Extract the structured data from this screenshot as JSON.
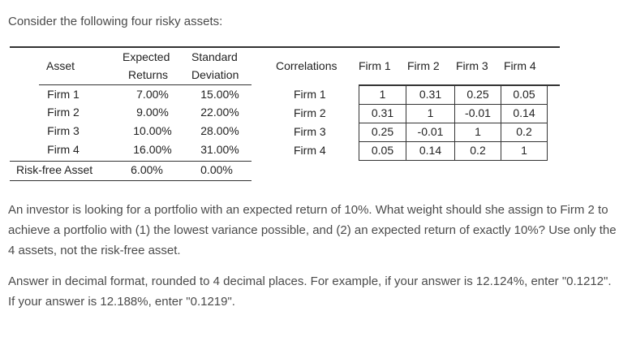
{
  "intro": "Consider the following four risky assets:",
  "asset_table": {
    "header_asset": "Asset",
    "header_expected_line1": "Expected",
    "header_expected_line2": "Returns",
    "header_std_line1": "Standard",
    "header_std_line2": "Deviation",
    "rows": [
      {
        "asset": "Firm 1",
        "expected": "7.00%",
        "std": "15.00%"
      },
      {
        "asset": "Firm 2",
        "expected": "9.00%",
        "std": "22.00%"
      },
      {
        "asset": "Firm 3",
        "expected": "10.00%",
        "std": "28.00%"
      },
      {
        "asset": "Firm 4",
        "expected": "16.00%",
        "std": "31.00%"
      },
      {
        "asset": "Risk-free Asset",
        "expected": "6.00%",
        "std": "0.00%"
      }
    ]
  },
  "corr_table": {
    "header_label": "Correlations",
    "columns": [
      "Firm 1",
      "Firm 2",
      "Firm 3",
      "Firm 4"
    ],
    "rows": [
      {
        "label": "Firm 1",
        "values": [
          "1",
          "0.31",
          "0.25",
          "0.05"
        ]
      },
      {
        "label": "Firm 2",
        "values": [
          "0.31",
          "1",
          "-0.01",
          "0.14"
        ]
      },
      {
        "label": "Firm 3",
        "values": [
          "0.25",
          "-0.01",
          "1",
          "0.2"
        ]
      },
      {
        "label": "Firm 4",
        "values": [
          "0.05",
          "0.14",
          "0.2",
          "1"
        ]
      }
    ]
  },
  "question": "An investor is looking for a portfolio with an expected return of 10%. What weight should she assign to Firm 2 to achieve a portfolio with (1) the lowest variance possible, and (2) an expected return of exactly 10%?  Use only the 4 assets, not the risk-free asset.",
  "instructions": "Answer in decimal format, rounded to 4 decimal places.  For example, if your answer is 12.124%, enter \"0.1212\".  If your answer is 12.188%, enter \"0.1219\"."
}
